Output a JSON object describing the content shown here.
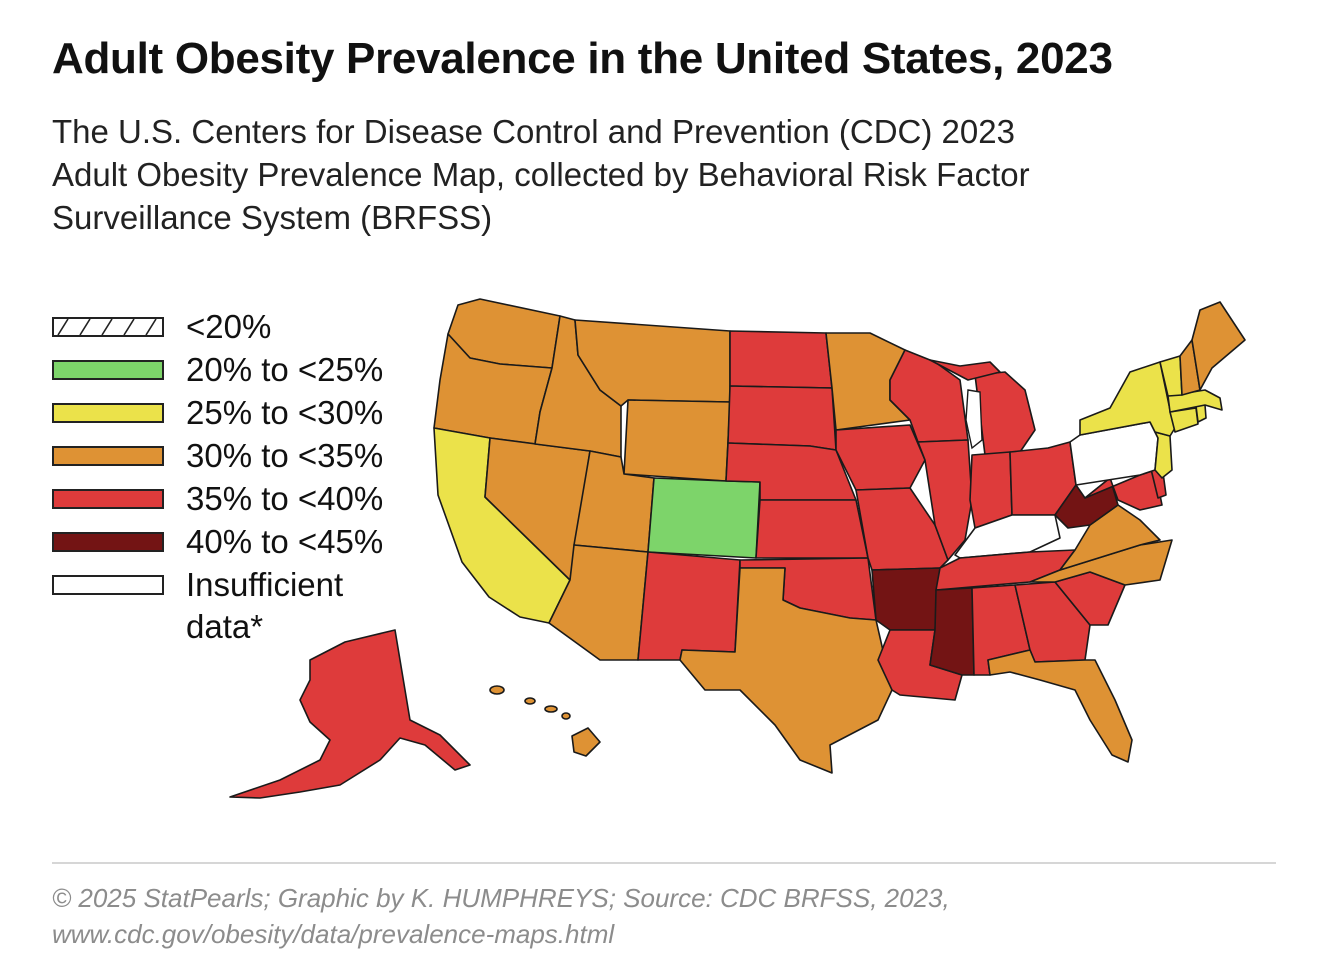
{
  "title": "Adult Obesity Prevalence in the United States, 2023",
  "subtitle": [
    "The U.S. Centers for Disease Control and Prevention (CDC) 2023",
    "Adult Obesity Prevalence Map, collected by Behavioral Risk Factor",
    "Surveillance System (BRFSS)"
  ],
  "legend": [
    {
      "label": "<20%",
      "color": "#ffffff",
      "pattern": "hatch"
    },
    {
      "label": "20% to <25%",
      "color": "#7dd46a"
    },
    {
      "label": "25% to <30%",
      "color": "#ebe24a"
    },
    {
      "label": "30% to <35%",
      "color": "#de9234"
    },
    {
      "label": "35% to <40%",
      "color": "#de3b3b"
    },
    {
      "label": "40% to <45%",
      "color": "#731414"
    },
    {
      "label": "Insufficient",
      "label2": "data*",
      "color": "#ffffff"
    }
  ],
  "map": {
    "categories": {
      "green": "20% to <25%",
      "yellow": "25% to <30%",
      "orange": "30% to <35%",
      "red": "35% to <40%",
      "darkred": "40% to <45%",
      "insufficient": "Insufficient data*"
    },
    "states": [
      {
        "name": "Washington",
        "category": "orange"
      },
      {
        "name": "Oregon",
        "category": "orange"
      },
      {
        "name": "California",
        "category": "yellow"
      },
      {
        "name": "Nevada",
        "category": "orange"
      },
      {
        "name": "Idaho",
        "category": "orange"
      },
      {
        "name": "Montana",
        "category": "orange"
      },
      {
        "name": "Wyoming",
        "category": "orange"
      },
      {
        "name": "Utah",
        "category": "orange"
      },
      {
        "name": "Arizona",
        "category": "orange"
      },
      {
        "name": "Colorado",
        "category": "green"
      },
      {
        "name": "New Mexico",
        "category": "red"
      },
      {
        "name": "North Dakota",
        "category": "red"
      },
      {
        "name": "South Dakota",
        "category": "red"
      },
      {
        "name": "Nebraska",
        "category": "red"
      },
      {
        "name": "Kansas",
        "category": "red"
      },
      {
        "name": "Oklahoma",
        "category": "red"
      },
      {
        "name": "Texas",
        "category": "orange"
      },
      {
        "name": "Minnesota",
        "category": "orange"
      },
      {
        "name": "Iowa",
        "category": "red"
      },
      {
        "name": "Missouri",
        "category": "red"
      },
      {
        "name": "Arkansas",
        "category": "darkred"
      },
      {
        "name": "Louisiana",
        "category": "red"
      },
      {
        "name": "Wisconsin",
        "category": "red"
      },
      {
        "name": "Illinois",
        "category": "red"
      },
      {
        "name": "Michigan",
        "category": "red"
      },
      {
        "name": "Indiana",
        "category": "red"
      },
      {
        "name": "Ohio",
        "category": "red"
      },
      {
        "name": "Kentucky",
        "category": "insufficient"
      },
      {
        "name": "Tennessee",
        "category": "red"
      },
      {
        "name": "Mississippi",
        "category": "darkred"
      },
      {
        "name": "Alabama",
        "category": "red"
      },
      {
        "name": "Georgia",
        "category": "red"
      },
      {
        "name": "Florida",
        "category": "orange"
      },
      {
        "name": "South Carolina",
        "category": "red"
      },
      {
        "name": "North Carolina",
        "category": "orange"
      },
      {
        "name": "Virginia",
        "category": "orange"
      },
      {
        "name": "West Virginia",
        "category": "darkred"
      },
      {
        "name": "Maryland",
        "category": "red"
      },
      {
        "name": "Delaware",
        "category": "red"
      },
      {
        "name": "Pennsylvania",
        "category": "insufficient"
      },
      {
        "name": "New Jersey",
        "category": "yellow"
      },
      {
        "name": "New York",
        "category": "yellow"
      },
      {
        "name": "Connecticut",
        "category": "yellow"
      },
      {
        "name": "Rhode Island",
        "category": "yellow"
      },
      {
        "name": "Massachusetts",
        "category": "yellow"
      },
      {
        "name": "Vermont",
        "category": "yellow"
      },
      {
        "name": "New Hampshire",
        "category": "orange"
      },
      {
        "name": "Maine",
        "category": "orange"
      },
      {
        "name": "Alaska",
        "category": "red"
      },
      {
        "name": "Hawaii",
        "category": "orange"
      }
    ]
  },
  "footer": [
    "© 2025 StatPearls; Graphic by K. HUMPHREYS; Source: CDC BRFSS, 2023,",
    "www.cdc.gov/obesity/data/prevalence-maps.html"
  ]
}
